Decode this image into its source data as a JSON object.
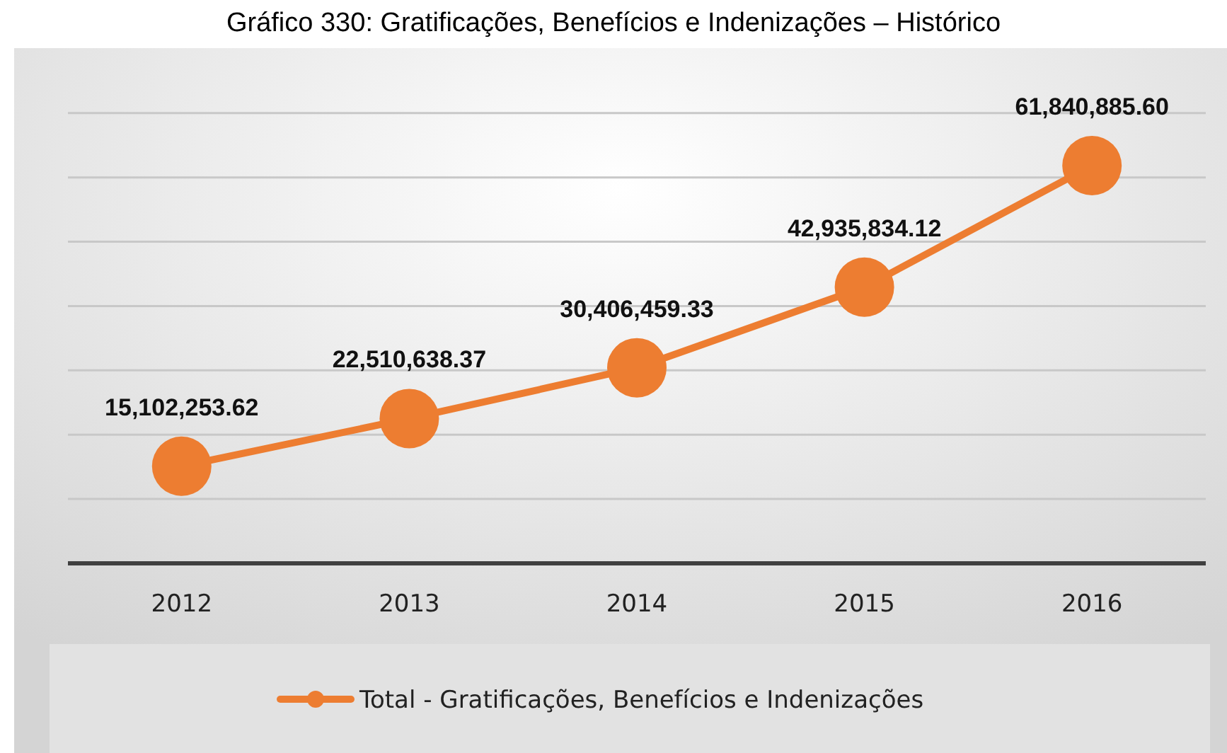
{
  "chart_data": {
    "type": "line",
    "title": "Gráfico 330: Gratificações, Benefícios e Indenizações – Histórico",
    "categories": [
      "2012",
      "2013",
      "2014",
      "2015",
      "2016"
    ],
    "series": [
      {
        "name": "Total - Gratificações, Benefícios e Indenizações",
        "color": "#ed7d31",
        "values": [
          15102253.62,
          22510638.37,
          30406459.33,
          42935834.12,
          61840885.6
        ],
        "value_labels": [
          "15,102,253.62",
          "22,510,638.37",
          "30,406,459.33",
          "42,935,834.12",
          "61,840,885.60"
        ]
      }
    ],
    "tick_labels": "x",
    "grid": "y",
    "legend": "bottom",
    "marker": "circle",
    "line_style": "solid"
  }
}
